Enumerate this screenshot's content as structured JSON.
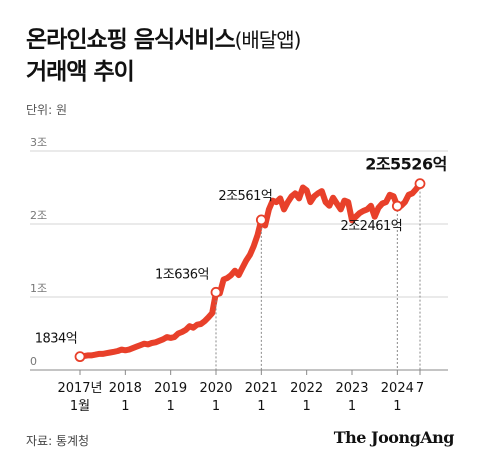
{
  "title": {
    "line1": "온라인쇼핑 음식서비스",
    "line1_sub": "(배달앱)",
    "line2": "거래액 추이"
  },
  "unit_label": "단위: 원",
  "source": "자료: 통계청",
  "brand": "The JoongAng",
  "colors": {
    "line": "#e8402a",
    "marker": "#e8402a",
    "axis": "#999999",
    "text": "#111111"
  },
  "chart_data": {
    "type": "line",
    "title": "온라인쇼핑 음식서비스(배달앱) 거래액 추이",
    "unit": "원",
    "y_ticks": [
      {
        "value": 0,
        "label": "0"
      },
      {
        "value": 1,
        "label": "1조"
      },
      {
        "value": 2,
        "label": "2조"
      },
      {
        "value": 3,
        "label": "3조"
      }
    ],
    "ylim": [
      0,
      3
    ],
    "x_ticks": [
      {
        "month": 0,
        "year_label": "2017년",
        "month_label": "1월"
      },
      {
        "month": 12,
        "year_label": "2018",
        "month_label": "1"
      },
      {
        "month": 24,
        "year_label": "2019",
        "month_label": "1"
      },
      {
        "month": 36,
        "year_label": "2020",
        "month_label": "1"
      },
      {
        "month": 48,
        "year_label": "2021",
        "month_label": "1"
      },
      {
        "month": 60,
        "year_label": "2022",
        "month_label": "1"
      },
      {
        "month": 72,
        "year_label": "2023",
        "month_label": "1"
      },
      {
        "month": 84,
        "year_label": "2024",
        "month_label": "1"
      },
      {
        "month": 90,
        "year_label": "7",
        "month_label": ""
      }
    ],
    "xlim": [
      0,
      90
    ],
    "series": [
      {
        "values": [
          0.183,
          0.19,
          0.2,
          0.2,
          0.21,
          0.22,
          0.22,
          0.23,
          0.24,
          0.25,
          0.26,
          0.28,
          0.27,
          0.28,
          0.3,
          0.32,
          0.34,
          0.36,
          0.35,
          0.37,
          0.38,
          0.4,
          0.42,
          0.45,
          0.44,
          0.45,
          0.5,
          0.52,
          0.55,
          0.6,
          0.58,
          0.62,
          0.63,
          0.67,
          0.72,
          0.78,
          1.064,
          1.05,
          1.24,
          1.26,
          1.3,
          1.36,
          1.3,
          1.4,
          1.5,
          1.58,
          1.7,
          1.85,
          2.056,
          1.98,
          2.2,
          2.32,
          2.3,
          2.35,
          2.2,
          2.3,
          2.38,
          2.42,
          2.35,
          2.5,
          2.46,
          2.3,
          2.38,
          2.42,
          2.45,
          2.3,
          2.25,
          2.36,
          2.28,
          2.2,
          2.32,
          2.3,
          2.05,
          2.1,
          2.15,
          2.18,
          2.2,
          2.25,
          2.1,
          2.22,
          2.28,
          2.3,
          2.4,
          2.38,
          2.246,
          2.25,
          2.3,
          2.4,
          2.42,
          2.48,
          2.553
        ]
      }
    ],
    "annotations": [
      {
        "month": 0,
        "label": "1834억"
      },
      {
        "month": 36,
        "label": "1조636억"
      },
      {
        "month": 48,
        "label": "2조561억"
      },
      {
        "month": 84,
        "label": "2조2461억"
      },
      {
        "month": 90,
        "label": "2조5526억"
      }
    ]
  }
}
